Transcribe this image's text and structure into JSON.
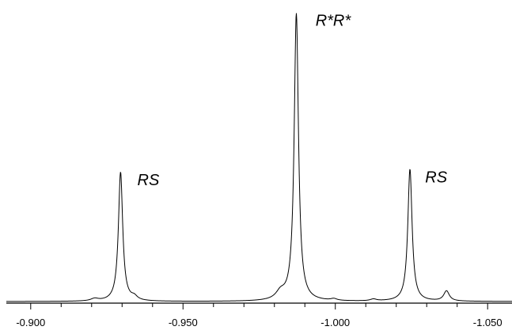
{
  "chart_data": {
    "type": "line",
    "title": "",
    "xlabel": "",
    "ylabel": "",
    "x_reversed": true,
    "xlim": [
      -0.892,
      -1.058
    ],
    "ylim": [
      0,
      1
    ],
    "grid": false,
    "y_axis_visible": false,
    "major_ticks": [
      -0.9,
      -0.95,
      -1.0,
      -1.05
    ],
    "tick_labels": [
      "-0.900",
      "-0.950",
      "-1.000",
      "-1.050"
    ],
    "minor_tick_step": 0.01,
    "line_color": "#000000",
    "baseline": 0.0,
    "peaks": [
      {
        "label": "RS",
        "x": -0.9295,
        "height": 0.445,
        "width": 0.00085
      },
      {
        "label": "",
        "x": -0.934,
        "height": 0.012,
        "width": 0.0012
      },
      {
        "label": "",
        "x": -0.921,
        "height": 0.008,
        "width": 0.0015
      },
      {
        "label": "",
        "x": -0.982,
        "height": 0.025,
        "width": 0.0018
      },
      {
        "label": "R*R*",
        "x": -0.9872,
        "height": 0.99,
        "width": 0.00085
      },
      {
        "label": "",
        "x": -0.9995,
        "height": 0.006,
        "width": 0.0012
      },
      {
        "label": "",
        "x": -1.0125,
        "height": 0.006,
        "width": 0.0012
      },
      {
        "label": "RS",
        "x": -1.0245,
        "height": 0.455,
        "width": 0.00085
      },
      {
        "label": "",
        "x": -1.0365,
        "height": 0.035,
        "width": 0.0011
      }
    ],
    "annotations": [
      {
        "text": "RS",
        "x": -0.935,
        "y": 0.4
      },
      {
        "text": "R*R*",
        "x": -0.9935,
        "y": 0.95
      },
      {
        "text": "RS",
        "x": -1.0295,
        "y": 0.41
      }
    ]
  }
}
